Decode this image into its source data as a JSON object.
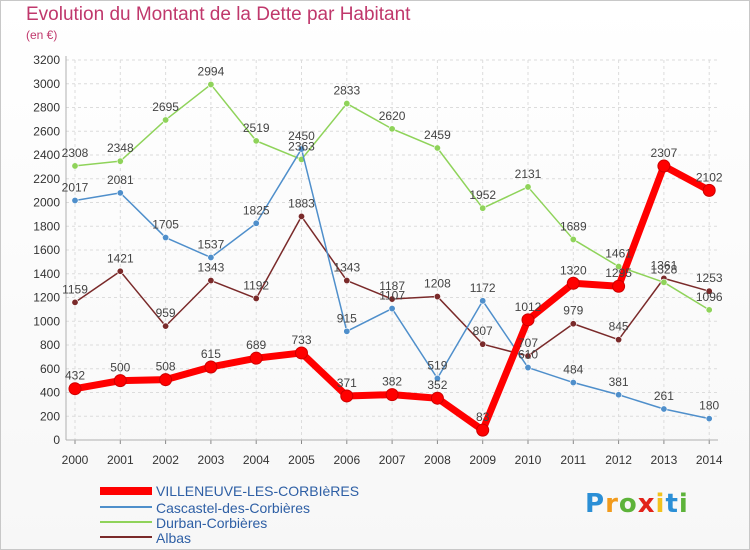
{
  "header": {
    "title": "Evolution du Montant de la Dette par Habitant",
    "subtitle": "(en €)"
  },
  "logo": {
    "text": "Proxiti",
    "colors": [
      "#2b8fd6",
      "#f29b1c",
      "#5db33a",
      "#e2231a",
      "#f2c21c",
      "#2b8fd6",
      "#5db33a"
    ]
  },
  "chart_data": {
    "type": "line",
    "title": "Evolution du Montant de la Dette par Habitant",
    "subtitle": "(en €)",
    "x": [
      "2000",
      "2001",
      "2002",
      "2003",
      "2004",
      "2005",
      "2006",
      "2007",
      "2008",
      "2009",
      "2010",
      "2011",
      "2012",
      "2013",
      "2014"
    ],
    "ylim": [
      0,
      3200
    ],
    "yticks": [
      0,
      200,
      400,
      600,
      800,
      1000,
      1200,
      1400,
      1600,
      1800,
      2000,
      2200,
      2400,
      2600,
      2800,
      3000,
      3200
    ],
    "grid": true,
    "legend_position": "bottom-left",
    "series": [
      {
        "name": "VILLENEUVE-LES-CORBIèRES",
        "color": "#ff0000",
        "values": [
          432,
          500,
          508,
          615,
          689,
          733,
          371,
          382,
          352,
          83,
          1012,
          1320,
          1295,
          2307,
          2102
        ],
        "labels": [
          "432",
          "500",
          "508",
          "615",
          "689",
          "733",
          "371",
          "382",
          "352",
          "83",
          "1012",
          "1320",
          "1295",
          "2307",
          "2102"
        ]
      },
      {
        "name": "Cascastel-des-Corbières",
        "color": "#4f8fcb",
        "values": [
          2017,
          2081,
          1705,
          1537,
          1825,
          2450,
          915,
          1107,
          519,
          1172,
          610,
          484,
          381,
          261,
          180
        ],
        "labels": [
          "2017",
          "2081",
          "1705",
          "1537",
          "1825",
          "2450",
          "915",
          "1107",
          "519",
          "1172",
          "610",
          "484",
          "381",
          "261",
          "180"
        ]
      },
      {
        "name": "Durban-Corbières",
        "color": "#8fd35a",
        "values": [
          2308,
          2348,
          2695,
          2994,
          2519,
          2363,
          2833,
          2620,
          2459,
          1952,
          2131,
          1689,
          1461,
          1328,
          1096
        ],
        "labels": [
          "2308",
          "2348",
          "2695",
          "2994",
          "2519",
          "2363",
          "2833",
          "2620",
          "2459",
          "1952",
          "2131",
          "1689",
          "1461",
          "1328",
          "1096"
        ]
      },
      {
        "name": "Albas",
        "color": "#7a2a2a",
        "values": [
          1159,
          1421,
          959,
          1343,
          1192,
          1883,
          1343,
          1187,
          1208,
          807,
          707,
          979,
          845,
          1361,
          1253
        ],
        "labels": [
          "1159",
          "1421",
          "959",
          "1343",
          "1192",
          "1883",
          "1343",
          "1187",
          "1208",
          "807",
          "707",
          "979",
          "845",
          "1361",
          "1253"
        ]
      }
    ]
  }
}
